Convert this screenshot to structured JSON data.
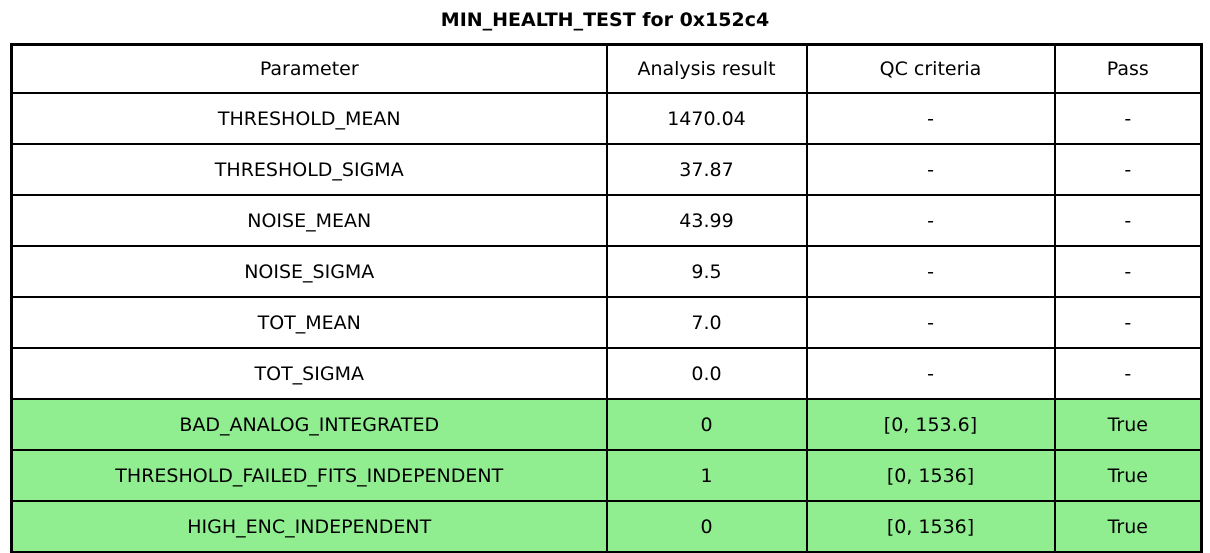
{
  "chart_data": {
    "type": "table",
    "title": "MIN_HEALTH_TEST for 0x152c4",
    "columns": [
      "Parameter",
      "Analysis result",
      "QC criteria",
      "Pass"
    ],
    "rows": [
      {
        "parameter": "THRESHOLD_MEAN",
        "analysis_result": "1470.04",
        "qc_criteria": "-",
        "pass": "-",
        "highlight": false
      },
      {
        "parameter": "THRESHOLD_SIGMA",
        "analysis_result": "37.87",
        "qc_criteria": "-",
        "pass": "-",
        "highlight": false
      },
      {
        "parameter": "NOISE_MEAN",
        "analysis_result": "43.99",
        "qc_criteria": "-",
        "pass": "-",
        "highlight": false
      },
      {
        "parameter": "NOISE_SIGMA",
        "analysis_result": "9.5",
        "qc_criteria": "-",
        "pass": "-",
        "highlight": false
      },
      {
        "parameter": "TOT_MEAN",
        "analysis_result": "7.0",
        "qc_criteria": "-",
        "pass": "-",
        "highlight": false
      },
      {
        "parameter": "TOT_SIGMA",
        "analysis_result": "0.0",
        "qc_criteria": "-",
        "pass": "-",
        "highlight": false
      },
      {
        "parameter": "BAD_ANALOG_INTEGRATED",
        "analysis_result": "0",
        "qc_criteria": "[0, 153.6]",
        "pass": "True",
        "highlight": true
      },
      {
        "parameter": "THRESHOLD_FAILED_FITS_INDEPENDENT",
        "analysis_result": "1",
        "qc_criteria": "[0, 1536]",
        "pass": "True",
        "highlight": true
      },
      {
        "parameter": "HIGH_ENC_INDEPENDENT",
        "analysis_result": "0",
        "qc_criteria": "[0, 1536]",
        "pass": "True",
        "highlight": true
      }
    ],
    "layout": {
      "highlight_color": "#90ee90",
      "border_color": "#000000",
      "background_color": "#ffffff"
    }
  }
}
